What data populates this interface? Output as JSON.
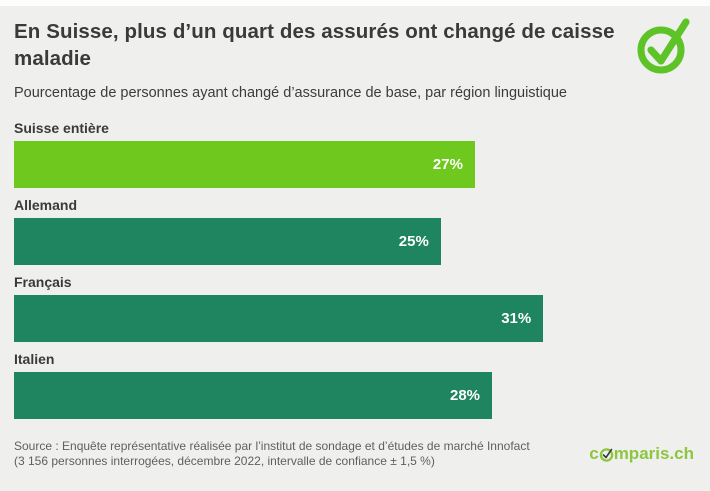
{
  "header": {
    "title": "En Suisse, plus d’un quart des assurés ont changé de caisse maladie",
    "subtitle": "Pourcentage de personnes ayant changé d’assurance de base, par région linguistique"
  },
  "chart_data": {
    "type": "bar",
    "orientation": "horizontal",
    "title": "En Suisse, plus d’un quart des assurés ont changé de caisse maladie",
    "subtitle": "Pourcentage de personnes ayant changé d’assurance de base, par région linguistique",
    "categories": [
      "Suisse entière",
      "Allemand",
      "Français",
      "Italien"
    ],
    "values": [
      27,
      25,
      31,
      28
    ],
    "value_labels": [
      "27%",
      "25%",
      "31%",
      "28%"
    ],
    "bar_colors": [
      "#6ec81e",
      "#1e8560",
      "#1e8560",
      "#1e8560"
    ],
    "xlim": [
      0,
      31
    ],
    "max_bar_fraction": 0.776,
    "grid": false,
    "legend": false,
    "unit": "%"
  },
  "footer": {
    "source_line1": "Source : Enquête représentative réalisée par l’institut de sondage et d’études de marché Innofact",
    "source_line2": "(3 156 personnes interrogées, décembre 2022, intervalle de confiance ± 1,5 %)",
    "logo_prefix": "c",
    "logo_suffix": "mparis.ch",
    "logo_name": "comparis.ch"
  },
  "colors": {
    "background": "#efefee",
    "bar_light_green": "#6ec81e",
    "bar_dark_green": "#1e8560",
    "icon_green": "#5ec327",
    "logo_green": "#8dc63f",
    "text_dark": "#3a3a39",
    "text_source": "#5f5f5e"
  }
}
